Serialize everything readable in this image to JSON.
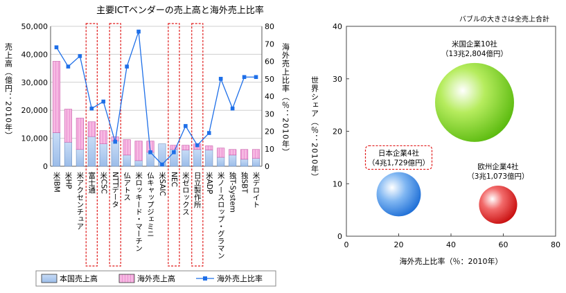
{
  "chart_data": [
    {
      "type": "bar",
      "title": "主要ICTベンダーの売上高と海外売上比率",
      "ylabel_left": "売上高（億円：2010年）",
      "ylabel_right": "海外売上比率（％：2010年）",
      "ylim_left": [
        0,
        50000
      ],
      "ylim_right": [
        0,
        80
      ],
      "yticks_left": [
        "0",
        "10,000",
        "20,000",
        "30,000",
        "40,000",
        "50,000"
      ],
      "yticks_right": [
        "0",
        "10",
        "20",
        "30",
        "40",
        "50",
        "60",
        "70",
        "80"
      ],
      "categories": [
        "米IBM",
        "米HP",
        "米アクセンチュア",
        "富士通",
        "米CSC",
        "NTTデータ",
        "仏アトス",
        "米ロッキード・マーチン",
        "仏キャップジェミニ",
        "米SAIC",
        "NEC",
        "米ゼロックス",
        "日立製作所",
        "米ADP",
        "米ノースロップ・グラマン",
        "独T-System",
        "独SBT",
        "米デロイト"
      ],
      "highlighted": [
        "富士通",
        "NTTデータ",
        "NEC",
        "日立製作所"
      ],
      "series": [
        {
          "name": "本国売上高",
          "type": "bar",
          "color": "#a9c8ef",
          "values": [
            12000,
            8600,
            6000,
            10600,
            8000,
            9000,
            4000,
            2000,
            5000,
            8000,
            6000,
            5800,
            6000,
            5800,
            3200,
            4000,
            2500,
            2800
          ]
        },
        {
          "name": "海外売上高",
          "type": "bar",
          "color": "#f3a6db",
          "values": [
            25500,
            11800,
            11200,
            5300,
            4700,
            1500,
            5500,
            7000,
            4000,
            0,
            1500,
            1700,
            2000,
            1500,
            3300,
            2000,
            3500,
            3200
          ]
        },
        {
          "name": "海外売上比率",
          "type": "line",
          "axis": "right",
          "color": "#1e6fe8",
          "values": [
            68,
            57,
            63,
            33,
            37,
            14,
            57,
            77,
            8,
            1,
            8,
            23,
            12,
            19,
            50,
            33,
            51,
            51
          ]
        }
      ]
    },
    {
      "type": "bubble",
      "note": "バブルの大きさは全売上合計",
      "xlabel": "海外売上比率（％：2010年）",
      "ylabel": "世界シェア（％：2010年）",
      "xlim": [
        0,
        80
      ],
      "ylim": [
        0,
        40
      ],
      "xticks": [
        "0",
        "20",
        "40",
        "60",
        "80"
      ],
      "yticks": [
        "0",
        "10",
        "20",
        "30",
        "40"
      ],
      "bubbles": [
        {
          "label": "米国企業10社",
          "sub": "（13兆2,804億円）",
          "x": 49,
          "y": 25.5,
          "size": 132804,
          "color": "#6fcf1f"
        },
        {
          "label": "日本企業4社",
          "sub": "（4兆1,729億円）",
          "x": 20,
          "y": 8,
          "size": 41729,
          "color": "#3d8ee6",
          "boxed": true
        },
        {
          "label": "欧州企業4社",
          "sub": "（3兆1,073億円）",
          "x": 58,
          "y": 6,
          "size": 31073,
          "color": "#e02222"
        }
      ]
    }
  ],
  "legend": {
    "bar1": "本国売上高",
    "bar2": "海外売上高",
    "line": "海外売上比率"
  }
}
